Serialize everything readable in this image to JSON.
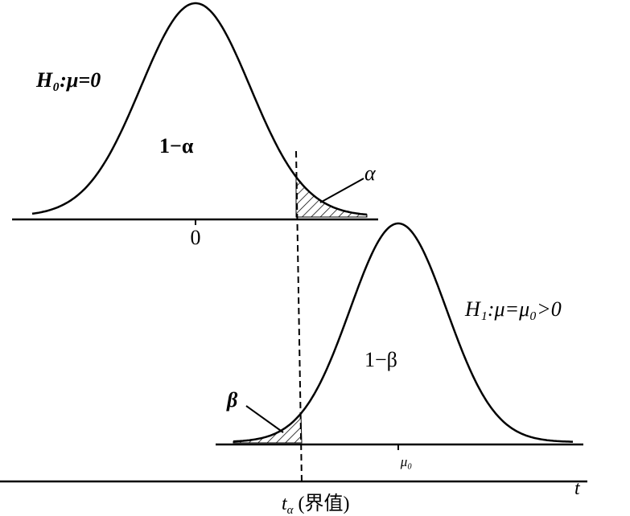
{
  "labels": {
    "h0": "H₀:μ=0",
    "one_minus_alpha": "1−α",
    "alpha": "α",
    "zero": "0",
    "h1": "H₁:μ=μ₀>0",
    "one_minus_beta": "1−β",
    "beta": "β",
    "mu0": "μ₀",
    "t": "t",
    "t_alpha": {
      "base": "t",
      "sub": "α",
      "suffix": "(界值)"
    }
  }
}
